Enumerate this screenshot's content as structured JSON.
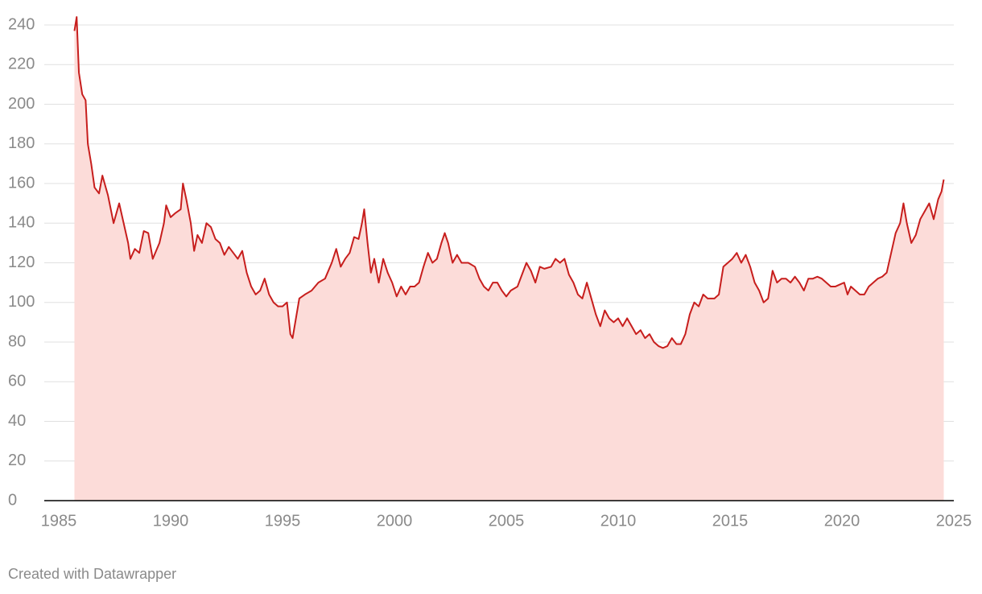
{
  "chart_data": {
    "type": "area",
    "credit": "Created with Datawrapper",
    "color": "#c71e1d",
    "fill_color": "#fcdcd9",
    "grid": true,
    "xlim": [
      1985,
      2025
    ],
    "xticks": [
      1985,
      1990,
      1995,
      2000,
      2005,
      2010,
      2015,
      2020,
      2025
    ],
    "ylim": [
      0,
      240
    ],
    "yticks": [
      0,
      20,
      40,
      60,
      80,
      100,
      120,
      140,
      160,
      180,
      200,
      220,
      240
    ],
    "x": [
      1985.7,
      1985.8,
      1985.9,
      1986.05,
      1986.2,
      1986.3,
      1986.45,
      1986.6,
      1986.8,
      1986.95,
      1987.2,
      1987.45,
      1987.7,
      1987.9,
      1988.1,
      1988.2,
      1988.4,
      1988.6,
      1988.8,
      1989.0,
      1989.2,
      1989.5,
      1989.7,
      1989.8,
      1990.0,
      1990.2,
      1990.45,
      1990.55,
      1990.7,
      1990.9,
      1991.05,
      1991.2,
      1991.4,
      1991.6,
      1991.8,
      1992.0,
      1992.2,
      1992.4,
      1992.6,
      1992.8,
      1993.0,
      1993.2,
      1993.4,
      1993.6,
      1993.8,
      1994.0,
      1994.2,
      1994.4,
      1994.6,
      1994.8,
      1995.0,
      1995.2,
      1995.35,
      1995.45,
      1995.6,
      1995.75,
      1996.0,
      1996.3,
      1996.6,
      1996.9,
      1997.2,
      1997.4,
      1997.6,
      1997.8,
      1998.0,
      1998.2,
      1998.4,
      1998.55,
      1998.65,
      1998.8,
      1998.95,
      1999.1,
      1999.3,
      1999.5,
      1999.7,
      1999.9,
      2000.1,
      2000.3,
      2000.5,
      2000.7,
      2000.9,
      2001.1,
      2001.3,
      2001.5,
      2001.7,
      2001.9,
      2002.1,
      2002.25,
      2002.4,
      2002.6,
      2002.8,
      2003.0,
      2003.3,
      2003.6,
      2003.8,
      2004.0,
      2004.2,
      2004.4,
      2004.6,
      2004.8,
      2005.0,
      2005.2,
      2005.5,
      2005.7,
      2005.9,
      2006.1,
      2006.3,
      2006.5,
      2006.7,
      2007.0,
      2007.2,
      2007.4,
      2007.6,
      2007.8,
      2008.0,
      2008.2,
      2008.4,
      2008.6,
      2008.8,
      2009.0,
      2009.2,
      2009.4,
      2009.6,
      2009.8,
      2010.0,
      2010.2,
      2010.4,
      2010.6,
      2010.8,
      2011.0,
      2011.2,
      2011.4,
      2011.6,
      2011.8,
      2012.0,
      2012.2,
      2012.4,
      2012.6,
      2012.8,
      2013.0,
      2013.2,
      2013.4,
      2013.6,
      2013.8,
      2014.0,
      2014.3,
      2014.5,
      2014.7,
      2014.9,
      2015.1,
      2015.3,
      2015.5,
      2015.7,
      2015.9,
      2016.1,
      2016.3,
      2016.5,
      2016.7,
      2016.9,
      2017.1,
      2017.3,
      2017.5,
      2017.7,
      2017.9,
      2018.1,
      2018.3,
      2018.5,
      2018.7,
      2018.9,
      2019.1,
      2019.3,
      2019.5,
      2019.7,
      2019.9,
      2020.1,
      2020.25,
      2020.4,
      2020.6,
      2020.8,
      2021.0,
      2021.2,
      2021.4,
      2021.6,
      2021.8,
      2022.0,
      2022.2,
      2022.4,
      2022.6,
      2022.75,
      2022.9,
      2023.1,
      2023.3,
      2023.5,
      2023.7,
      2023.9,
      2024.1,
      2024.3,
      2024.45,
      2024.55
    ],
    "values": [
      237,
      244,
      216,
      205,
      202,
      180,
      170,
      158,
      155,
      164,
      154,
      140,
      150,
      140,
      130,
      122,
      127,
      125,
      136,
      135,
      122,
      130,
      140,
      149,
      143,
      145,
      147,
      160,
      152,
      140,
      126,
      134,
      130,
      140,
      138,
      132,
      130,
      124,
      128,
      125,
      122,
      126,
      115,
      108,
      104,
      106,
      112,
      104,
      100,
      98,
      98,
      100,
      84,
      82,
      92,
      102,
      104,
      106,
      110,
      112,
      120,
      127,
      118,
      122,
      125,
      133,
      132,
      140,
      147,
      130,
      115,
      122,
      110,
      122,
      115,
      110,
      103,
      108,
      104,
      108,
      108,
      110,
      118,
      125,
      120,
      122,
      130,
      135,
      130,
      120,
      124,
      120,
      120,
      118,
      112,
      108,
      106,
      110,
      110,
      106,
      103,
      106,
      108,
      114,
      120,
      116,
      110,
      118,
      117,
      118,
      122,
      120,
      122,
      114,
      110,
      104,
      102,
      110,
      102,
      94,
      88,
      96,
      92,
      90,
      92,
      88,
      92,
      88,
      84,
      86,
      82,
      84,
      80,
      78,
      77,
      78,
      82,
      79,
      79,
      84,
      94,
      100,
      98,
      104,
      102,
      102,
      104,
      118,
      120,
      122,
      125,
      120,
      124,
      118,
      110,
      106,
      100,
      102,
      116,
      110,
      112,
      112,
      110,
      113,
      110,
      106,
      112,
      112,
      113,
      112,
      110,
      108,
      108,
      109,
      110,
      104,
      108,
      106,
      104,
      104,
      108,
      110,
      112,
      113,
      115,
      125,
      135,
      140,
      150,
      140,
      130,
      134,
      142,
      146,
      150,
      142,
      152,
      156,
      162
    ]
  }
}
